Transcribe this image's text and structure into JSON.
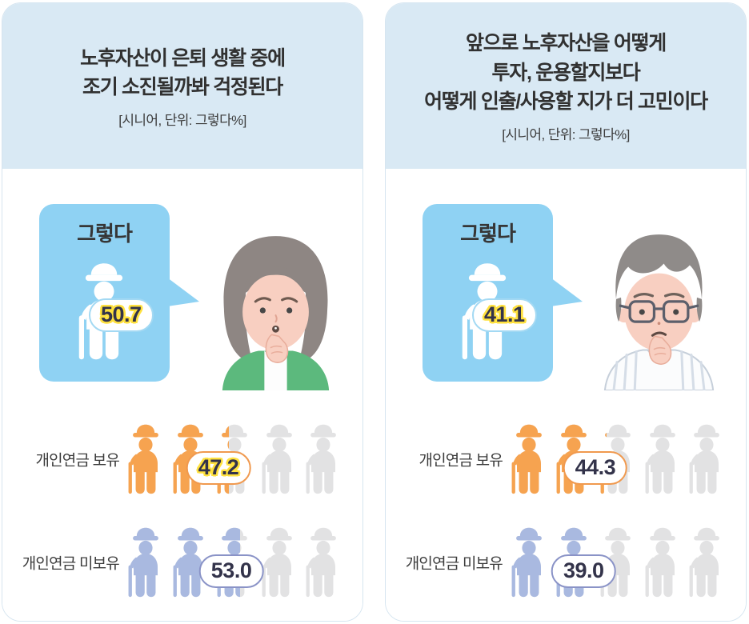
{
  "palette": {
    "header_bg": "#d9e9f4",
    "card_border": "#d6e5f0",
    "bubble_blue": "#8fd2f3",
    "highlight_yellow": "#ffe13e",
    "number_text": "#33334a",
    "orange": "#f6a350",
    "periwinkle": "#a9b9e0",
    "empty_icon_gray": "#e2e2e3"
  },
  "icons": {
    "senior": "elderly-person-with-hat-and-cane-pictogram",
    "left_illustration": "worried-senior-woman",
    "right_illustration": "worried-senior-man"
  },
  "panels": [
    {
      "title_lines": [
        "노후자산이 은퇴 생활 중에",
        "조기 소진될까봐 걱정된다",
        null
      ],
      "subtitle": "[시니어, 단위: 그렇다%]",
      "bubble": {
        "label": "그렇다",
        "value": "50.7",
        "highlighted": true
      },
      "rows": [
        {
          "label": "개인연금 보유",
          "value": "47.2",
          "percent": 47.2,
          "highlighted": true
        },
        {
          "label": "개인연금 미보유",
          "value": "53.0",
          "percent": 53.0,
          "highlighted": false
        }
      ]
    },
    {
      "title_lines": [
        "앞으로 노후자산을 어떻게",
        "투자, 운용할지보다",
        "어떻게 인출/사용할 지가 더 고민이다"
      ],
      "subtitle": "[시니어, 단위: 그렇다%]",
      "bubble": {
        "label": "그렇다",
        "value": "41.1",
        "highlighted": true
      },
      "rows": [
        {
          "label": "개인연금 보유",
          "value": "44.3",
          "percent": 44.3,
          "highlighted": false
        },
        {
          "label": "개인연금 미보유",
          "value": "39.0",
          "percent": 39.0,
          "highlighted": false
        }
      ]
    }
  ],
  "chart_data": [
    {
      "type": "pictograph",
      "title": "노후자산이 은퇴 생활 중에 조기 소진될까봐 걱정된다",
      "unit_note": "[시니어, 단위: 그렇다%]",
      "overall": {
        "label": "그렇다",
        "value": 50.7
      },
      "categories": [
        "개인연금 보유",
        "개인연금 미보유"
      ],
      "values": [
        47.2,
        53.0
      ],
      "icons_per_row": 5,
      "icon_value": 20,
      "series_colors": [
        "#f6a350",
        "#a9b9e0"
      ]
    },
    {
      "type": "pictograph",
      "title": "앞으로 노후자산을 어떻게 투자, 운용할지보다 어떻게 인출/사용할 지가 더 고민이다",
      "unit_note": "[시니어, 단위: 그렇다%]",
      "overall": {
        "label": "그렇다",
        "value": 41.1
      },
      "categories": [
        "개인연금 보유",
        "개인연금 미보유"
      ],
      "values": [
        44.3,
        39.0
      ],
      "icons_per_row": 5,
      "icon_value": 20,
      "series_colors": [
        "#f6a350",
        "#a9b9e0"
      ]
    }
  ]
}
